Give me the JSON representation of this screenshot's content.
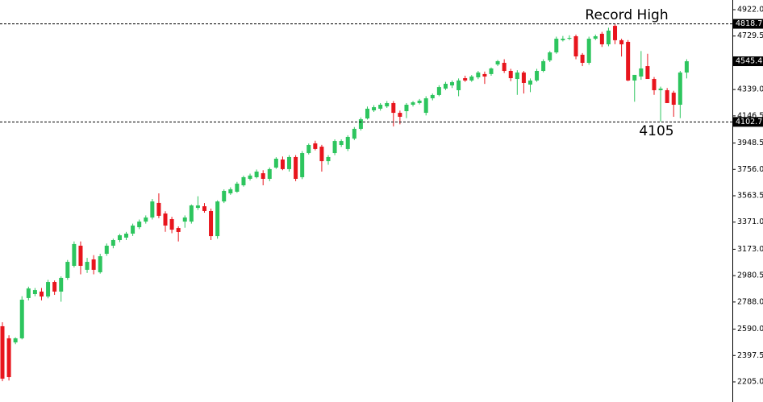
{
  "chart_data": {
    "type": "candlestick",
    "ylim": [
      2205.0,
      4922.0
    ],
    "yticks": [
      {
        "value": 4922.0,
        "label": "4922.0"
      },
      {
        "value": 4729.5,
        "label": "4729.5"
      },
      {
        "value": 4339.0,
        "label": "4339.0"
      },
      {
        "value": 4146.5,
        "label": "4146.5"
      },
      {
        "value": 3948.5,
        "label": "3948.5"
      },
      {
        "value": 3756.0,
        "label": "3756.0"
      },
      {
        "value": 3563.5,
        "label": "3563.5"
      },
      {
        "value": 3371.0,
        "label": "3371.0"
      },
      {
        "value": 3173.0,
        "label": "3173.0"
      },
      {
        "value": 2980.5,
        "label": "2980.5"
      },
      {
        "value": 2788.0,
        "label": "2788.0"
      },
      {
        "value": 2590.0,
        "label": "2590.0"
      },
      {
        "value": 2397.5,
        "label": "2397.5"
      },
      {
        "value": 2205.0,
        "label": "2205.0"
      }
    ],
    "up_color": "#2dc55e",
    "down_color": "#e8151d",
    "reference_lines": [
      4818.7,
      4102.7
    ],
    "annotations": [
      "Record High",
      "4105"
    ],
    "open": [
      2611,
      2523,
      2493,
      2523,
      2817,
      2846,
      2864,
      2828,
      2934,
      2864,
      2964,
      3052,
      3199,
      3023,
      3099,
      3005,
      3140,
      3199,
      3240,
      3258,
      3287,
      3334,
      3375,
      3405,
      3511,
      3434,
      3393,
      3328,
      3375,
      3375,
      3475,
      3487,
      3452,
      3269,
      3522,
      3581,
      3593,
      3640,
      3687,
      3699,
      3728,
      3687,
      3769,
      3828,
      3758,
      3846,
      3699,
      3875,
      3946,
      3922,
      3816,
      3875,
      3934,
      3905,
      3981,
      4052,
      4128,
      4187,
      4199,
      4216,
      4240,
      4169,
      4181,
      4228,
      4240,
      4169,
      4275,
      4299,
      4346,
      4369,
      4334,
      4422,
      4405,
      4428,
      4452,
      4452,
      4522,
      4534,
      4475,
      4416,
      4463,
      4375,
      4405,
      4475,
      4552,
      4610,
      4699,
      4710,
      4728,
      4593,
      4534,
      4710,
      4746,
      4669,
      4804,
      4699,
      4687,
      4405,
      4434,
      4510,
      4416,
      4334,
      4334,
      4316,
      4228,
      4463
    ],
    "high": [
      2640,
      2545,
      2530,
      2830,
      2900,
      2890,
      2890,
      2950,
      2945,
      2975,
      3095,
      3230,
      3230,
      3110,
      3130,
      3140,
      3215,
      3250,
      3285,
      3300,
      3360,
      3390,
      3420,
      3540,
      3581,
      3450,
      3410,
      3340,
      3420,
      3500,
      3560,
      3510,
      3470,
      3530,
      3610,
      3625,
      3665,
      3710,
      3725,
      3755,
      3750,
      3770,
      3845,
      3850,
      3860,
      3860,
      3890,
      3945,
      3965,
      3935,
      3860,
      3975,
      3975,
      4005,
      4065,
      4135,
      4215,
      4225,
      4240,
      4255,
      4255,
      4185,
      4240,
      4255,
      4270,
      4290,
      4310,
      4370,
      4395,
      4405,
      4420,
      4440,
      4445,
      4475,
      4470,
      4500,
      4555,
      4560,
      4490,
      4480,
      4475,
      4420,
      4490,
      4560,
      4620,
      4725,
      4730,
      4735,
      4740,
      4605,
      4725,
      4740,
      4760,
      4790,
      4818.7,
      4710,
      4700,
      4440,
      4620,
      4600,
      4430,
      4360,
      4350,
      4330,
      4475,
      4560
    ],
    "low": [
      2210,
      2215,
      2480,
      2515,
      2800,
      2830,
      2800,
      2815,
      2840,
      2790,
      2950,
      3040,
      2990,
      3000,
      2990,
      2995,
      3125,
      3180,
      3225,
      3240,
      3270,
      3320,
      3360,
      3390,
      3400,
      3300,
      3290,
      3230,
      3330,
      3360,
      3460,
      3440,
      3240,
      3250,
      3510,
      3570,
      3585,
      3630,
      3675,
      3690,
      3640,
      3670,
      3760,
      3750,
      3740,
      3670,
      3685,
      3865,
      3895,
      3740,
      3790,
      3860,
      3920,
      3890,
      3970,
      4040,
      4120,
      4175,
      4185,
      4205,
      4070,
      4085,
      4130,
      4215,
      4230,
      4150,
      4260,
      4290,
      4335,
      4350,
      4290,
      4395,
      4395,
      4415,
      4380,
      4440,
      4510,
      4460,
      4400,
      4300,
      4310,
      4320,
      4395,
      4465,
      4540,
      4600,
      4690,
      4700,
      4560,
      4510,
      4520,
      4700,
      4650,
      4655,
      4670,
      4580,
      4400,
      4250,
      4410,
      4420,
      4300,
      4105,
      4240,
      4140,
      4130,
      4420
    ],
    "close": [
      2228,
      2240,
      2523,
      2805,
      2887,
      2875,
      2828,
      2934,
      2864,
      2964,
      3081,
      3211,
      3052,
      3081,
      3023,
      3122,
      3199,
      3240,
      3275,
      3287,
      3346,
      3375,
      3405,
      3522,
      3417,
      3346,
      3316,
      3299,
      3405,
      3493,
      3493,
      3452,
      3269,
      3522,
      3599,
      3611,
      3652,
      3699,
      3711,
      3740,
      3687,
      3758,
      3834,
      3758,
      3846,
      3687,
      3875,
      3934,
      3905,
      3816,
      3846,
      3963,
      3963,
      3993,
      4052,
      4122,
      4199,
      4210,
      4228,
      4240,
      4169,
      4140,
      4228,
      4246,
      4258,
      4275,
      4299,
      4357,
      4381,
      4393,
      4405,
      4405,
      4434,
      4463,
      4434,
      4493,
      4546,
      4475,
      4422,
      4463,
      4387,
      4405,
      4475,
      4546,
      4610,
      4710,
      4710,
      4716,
      4581,
      4534,
      4710,
      4728,
      4669,
      4769,
      4699,
      4669,
      4405,
      4446,
      4493,
      4416,
      4334,
      4346,
      4240,
      4228,
      4463,
      4545.4
    ]
  }
}
